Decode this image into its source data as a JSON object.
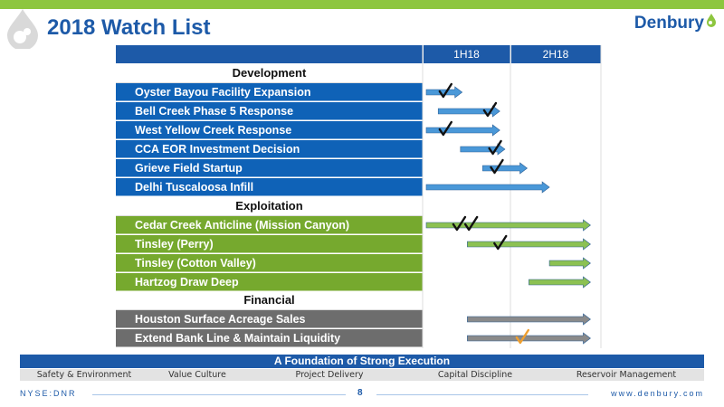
{
  "slide": {
    "title": "2018 Watch List",
    "brand": "Denbury",
    "page_number": "8",
    "ticker": "NYSE:DNR",
    "website": "www.denbury.com"
  },
  "timeline": {
    "periods": [
      "1H18",
      "2H18"
    ]
  },
  "sections": {
    "development": "Development",
    "exploitation": "Exploitation",
    "financial": "Financial"
  },
  "rows": [
    {
      "label": "Oyster Bayou Facility Expansion",
      "group": "dev",
      "start": 0.0,
      "end": 0.21,
      "checks": [
        0.11
      ],
      "arrow_color": "#4a98d8"
    },
    {
      "label": "Bell Creek Phase 5 Response",
      "group": "dev",
      "start": 0.07,
      "end": 0.43,
      "checks": [
        0.37
      ],
      "arrow_color": "#4a98d8"
    },
    {
      "label": "West Yellow Creek Response",
      "group": "dev",
      "start": 0.0,
      "end": 0.43,
      "checks": [
        0.11
      ],
      "arrow_color": "#4a98d8"
    },
    {
      "label": "CCA EOR Investment Decision",
      "group": "dev",
      "start": 0.2,
      "end": 0.46,
      "checks": [
        0.4
      ],
      "arrow_color": "#4a98d8"
    },
    {
      "label": "Grieve Field Startup",
      "group": "dev",
      "start": 0.33,
      "end": 0.59,
      "checks": [
        0.41
      ],
      "arrow_color": "#4a98d8"
    },
    {
      "label": "Delhi Tuscaloosa Infill",
      "group": "dev",
      "start": 0.0,
      "end": 0.72,
      "checks": [],
      "arrow_color": "#4a98d8"
    },
    {
      "label": "Cedar Creek Anticline (Mission Canyon)",
      "group": "exp",
      "start": 0.0,
      "end": 0.96,
      "checks": [
        0.19,
        0.26
      ],
      "arrow_color": "#8cc152"
    },
    {
      "label": "Tinsley (Perry)",
      "group": "exp",
      "start": 0.24,
      "end": 0.96,
      "checks": [
        0.43
      ],
      "arrow_color": "#8cc152"
    },
    {
      "label": "Tinsley (Cotton Valley)",
      "group": "exp",
      "start": 0.72,
      "end": 0.96,
      "checks": [],
      "arrow_color": "#8cc152"
    },
    {
      "label": "Hartzog Draw Deep",
      "group": "exp",
      "start": 0.6,
      "end": 0.96,
      "checks": [],
      "arrow_color": "#8cc152"
    },
    {
      "label": "Houston Surface Acreage Sales",
      "group": "fin",
      "start": 0.24,
      "end": 0.96,
      "checks": [],
      "arrow_color": "#8a8a8a"
    },
    {
      "label": "Extend Bank Line & Maintain Liquidity",
      "group": "fin",
      "start": 0.24,
      "end": 0.96,
      "checks": [
        0.56
      ],
      "arrow_color": "#8a8a8a",
      "check_color": "#f0a030"
    }
  ],
  "foundation": {
    "title": "A Foundation of Strong Execution",
    "pillars": [
      "Safety & Environment",
      "Value Culture",
      "Project Delivery",
      "Capital Discipline",
      "Reservoir Management"
    ]
  },
  "colors": {
    "brand_blue": "#1d5aa8",
    "dev_row": "#0f62b7",
    "exp_row": "#76a92e",
    "fin_row": "#6d6d6d",
    "accent_green": "#8dc63f",
    "check": "#111111"
  }
}
